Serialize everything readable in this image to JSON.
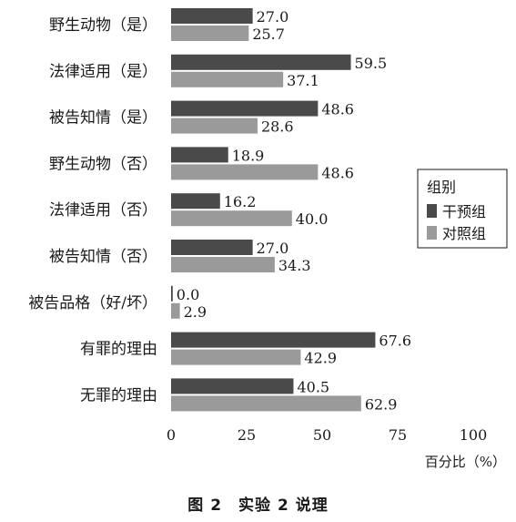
{
  "chart_data": {
    "type": "bar",
    "orientation": "horizontal",
    "categories": [
      "野生动物（是）",
      "法律适用（是）",
      "被告知情（是）",
      "野生动物（否）",
      "法律适用（否）",
      "被告知情（否）",
      "被告品格（好/坏）",
      "有罪的理由",
      "无罪的理由"
    ],
    "series": [
      {
        "name": "干预组",
        "color": "#4a4a4a",
        "values": [
          27.0,
          59.5,
          48.6,
          18.9,
          16.2,
          27.0,
          0.0,
          67.6,
          40.5
        ]
      },
      {
        "name": "对照组",
        "color": "#9a9a9a",
        "values": [
          25.7,
          37.1,
          28.6,
          48.6,
          40.0,
          34.3,
          2.9,
          42.9,
          62.9
        ]
      }
    ],
    "value_labels": [
      [
        "27.0",
        "59.5",
        "48.6",
        "18.9",
        "16.2",
        "27.0",
        "0.0",
        "67.6",
        "40.5"
      ],
      [
        "25.7",
        "37.1",
        "28.6",
        "48.6",
        "40.0",
        "34.3",
        "2.9",
        "42.9",
        "62.9"
      ]
    ],
    "xlim": [
      0,
      100
    ],
    "xticks": [
      "0",
      "25",
      "50",
      "75",
      "100"
    ],
    "xtick_values": [
      0,
      25,
      50,
      75,
      100
    ],
    "xlabel": "百分比（%）",
    "legend": {
      "title": "组别",
      "placement": "right"
    },
    "grid": false
  },
  "caption": "图 2　实验 2 说理"
}
